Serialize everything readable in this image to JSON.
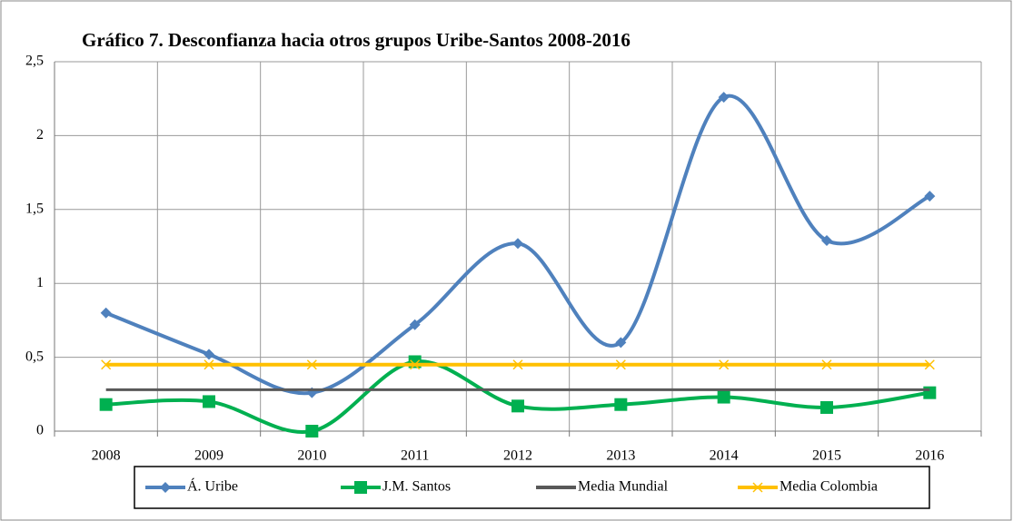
{
  "chart_data": {
    "type": "line",
    "title": "Gráfico 7. Desconfianza hacia otros grupos Uribe-Santos 2008-2016",
    "categories": [
      "2008",
      "2009",
      "2010",
      "2011",
      "2012",
      "2013",
      "2014",
      "2015",
      "2016"
    ],
    "series": [
      {
        "name": "Á. Uribe",
        "color": "#4f81bd",
        "marker": "diamond",
        "values": [
          0.8,
          0.52,
          0.26,
          0.72,
          1.27,
          0.6,
          2.26,
          1.29,
          1.59
        ]
      },
      {
        "name": "J.M. Santos",
        "color": "#00b050",
        "marker": "square",
        "values": [
          0.18,
          0.2,
          0,
          0.47,
          0.17,
          0.18,
          0.23,
          0.16,
          0.26
        ]
      },
      {
        "name": "Media Mundial",
        "color": "#595959",
        "marker": "none",
        "values": [
          0.28,
          0.28,
          0.28,
          0.28,
          0.28,
          0.28,
          0.28,
          0.28,
          0.28
        ]
      },
      {
        "name": "Media Colombia",
        "color": "#ffc000",
        "marker": "x",
        "values": [
          0.45,
          0.45,
          0.45,
          0.45,
          0.45,
          0.45,
          0.45,
          0.45,
          0.45
        ]
      }
    ],
    "ylim": [
      0,
      2.5
    ],
    "yticks": [
      0,
      {
        "value": 0.5,
        "label": "0,5"
      },
      1,
      {
        "value": 1.5,
        "label": "1,5"
      },
      2,
      {
        "value": 2.5,
        "label": "2,5"
      }
    ],
    "grid": true,
    "legend": "bottom"
  }
}
